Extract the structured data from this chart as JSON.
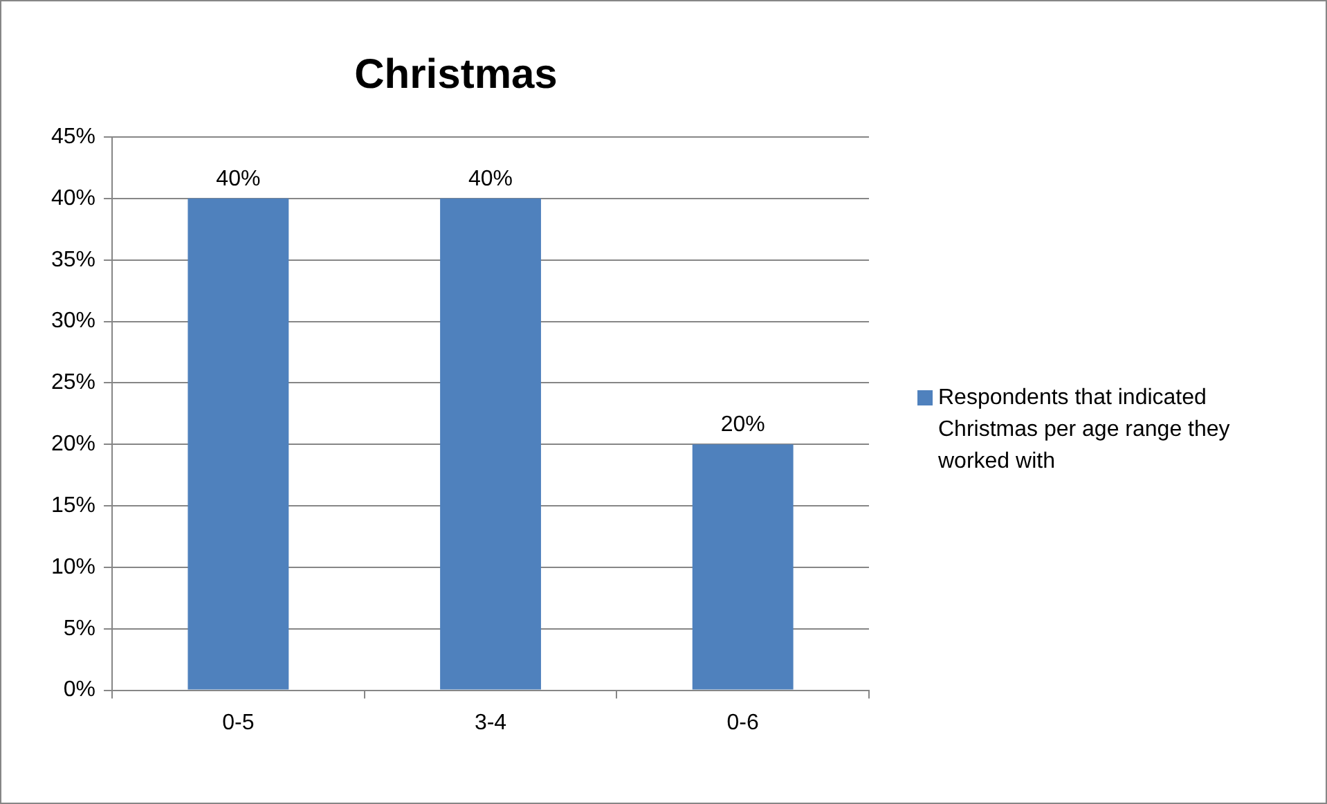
{
  "chart_data": {
    "type": "bar",
    "title": "Christmas",
    "categories": [
      "0-5",
      "3-4",
      "0-6"
    ],
    "series": [
      {
        "name": "Respondents that indicated Christmas per age range they worked with",
        "color": "#4f81bd",
        "values": [
          40,
          40,
          20
        ],
        "value_labels": [
          "40%",
          "40%",
          "20%"
        ]
      }
    ],
    "ylim": [
      0,
      45
    ],
    "yticks": [
      {
        "value": 0,
        "label": "0%"
      },
      {
        "value": 5,
        "label": "5%"
      },
      {
        "value": 10,
        "label": "10%"
      },
      {
        "value": 15,
        "label": "15%"
      },
      {
        "value": 20,
        "label": "20%"
      },
      {
        "value": 25,
        "label": "25%"
      },
      {
        "value": 30,
        "label": "30%"
      },
      {
        "value": 35,
        "label": "35%"
      },
      {
        "value": 40,
        "label": "40%"
      },
      {
        "value": 45,
        "label": "45%"
      }
    ],
    "grid": "y",
    "legend": "right"
  }
}
